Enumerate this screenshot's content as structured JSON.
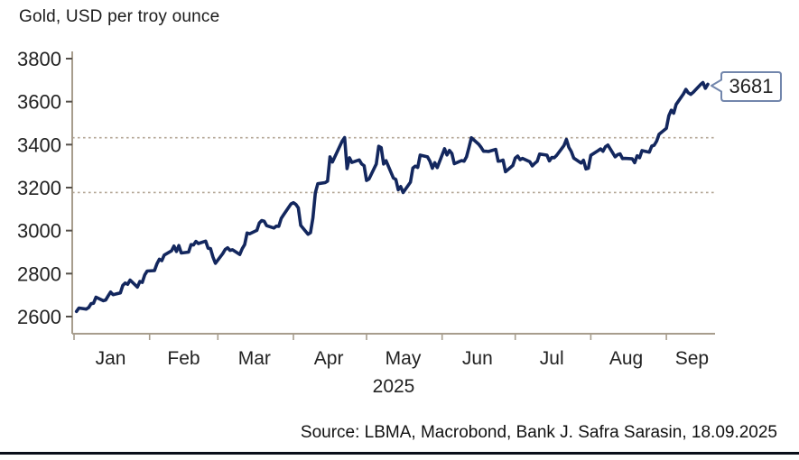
{
  "title": "Gold, USD per troy ounce",
  "source": "Source: LBMA, Macrobond, Bank J. Safra Sarasin, 18.09.2025",
  "colors": {
    "line": "#13275e",
    "axis": "#a79d8d",
    "grid_dash": "#b3a695",
    "tick": "#55504a",
    "text": "#222222",
    "callout_border": "#7286ac",
    "bottom_rule": "#0a0f1a"
  },
  "chart_data": {
    "type": "line",
    "title": "Gold, USD per troy ounce",
    "xlabel": "",
    "ylabel": "USD per troy ounce",
    "year_label": "2025",
    "x_tick_labels": [
      "Jan",
      "Feb",
      "Mar",
      "Apr",
      "May",
      "Jun",
      "Jul",
      "Aug",
      "Sep"
    ],
    "y_ticks": [
      2600,
      2800,
      3000,
      3200,
      3400,
      3600,
      3800
    ],
    "ylim": [
      2520,
      3840
    ],
    "dashed_levels": [
      3177,
      3432
    ],
    "grid": "dashed horizontal reference lines at prior high/low",
    "legend_position": "none",
    "last_value": 3681,
    "last_value_label": "3681",
    "series": [
      {
        "name": "Gold, USD per troy ounce",
        "points_format": "[day_of_year_2025, usd_per_troy_ounce]",
        "points": [
          [
            2,
            2624
          ],
          [
            3,
            2640
          ],
          [
            6,
            2635
          ],
          [
            7,
            2642
          ],
          [
            8,
            2660
          ],
          [
            9,
            2662
          ],
          [
            10,
            2690
          ],
          [
            13,
            2674
          ],
          [
            14,
            2677
          ],
          [
            15,
            2696
          ],
          [
            16,
            2714
          ],
          [
            17,
            2702
          ],
          [
            20,
            2710
          ],
          [
            21,
            2745
          ],
          [
            22,
            2756
          ],
          [
            23,
            2750
          ],
          [
            24,
            2770
          ],
          [
            27,
            2737
          ],
          [
            28,
            2763
          ],
          [
            29,
            2759
          ],
          [
            30,
            2794
          ],
          [
            31,
            2812
          ],
          [
            34,
            2814
          ],
          [
            35,
            2845
          ],
          [
            36,
            2867
          ],
          [
            37,
            2860
          ],
          [
            38,
            2886
          ],
          [
            41,
            2906
          ],
          [
            42,
            2928
          ],
          [
            43,
            2903
          ],
          [
            44,
            2930
          ],
          [
            45,
            2896
          ],
          [
            48,
            2900
          ],
          [
            49,
            2935
          ],
          [
            50,
            2933
          ],
          [
            51,
            2950
          ],
          [
            52,
            2940
          ],
          [
            55,
            2951
          ],
          [
            56,
            2918
          ],
          [
            57,
            2916
          ],
          [
            58,
            2877
          ],
          [
            59,
            2848
          ],
          [
            62,
            2893
          ],
          [
            63,
            2912
          ],
          [
            64,
            2920
          ],
          [
            65,
            2908
          ],
          [
            66,
            2911
          ],
          [
            69,
            2889
          ],
          [
            70,
            2916
          ],
          [
            71,
            2935
          ],
          [
            72,
            2989
          ],
          [
            73,
            2985
          ],
          [
            76,
            3001
          ],
          [
            77,
            3035
          ],
          [
            78,
            3047
          ],
          [
            79,
            3044
          ],
          [
            80,
            3023
          ],
          [
            83,
            3012
          ],
          [
            84,
            3021
          ],
          [
            85,
            3020
          ],
          [
            86,
            3057
          ],
          [
            87,
            3074
          ],
          [
            90,
            3124
          ],
          [
            91,
            3130
          ],
          [
            92,
            3122
          ],
          [
            93,
            3106
          ],
          [
            94,
            3024
          ],
          [
            97,
            2983
          ],
          [
            98,
            2990
          ],
          [
            99,
            3059
          ],
          [
            100,
            3176
          ],
          [
            101,
            3218
          ],
          [
            104,
            3223
          ],
          [
            105,
            3230
          ],
          [
            106,
            3343
          ],
          [
            107,
            3319
          ],
          [
            111,
            3416
          ],
          [
            112,
            3433
          ],
          [
            113,
            3288
          ],
          [
            114,
            3339
          ],
          [
            115,
            3317
          ],
          [
            118,
            3329
          ],
          [
            119,
            3310
          ],
          [
            120,
            3302
          ],
          [
            121,
            3233
          ],
          [
            122,
            3240
          ],
          [
            125,
            3310
          ],
          [
            126,
            3392
          ],
          [
            127,
            3386
          ],
          [
            128,
            3310
          ],
          [
            129,
            3325
          ],
          [
            132,
            3245
          ],
          [
            133,
            3238
          ],
          [
            134,
            3190
          ],
          [
            135,
            3205
          ],
          [
            136,
            3177
          ],
          [
            139,
            3225
          ],
          [
            140,
            3291
          ],
          [
            141,
            3300
          ],
          [
            142,
            3294
          ],
          [
            143,
            3351
          ],
          [
            146,
            3343
          ],
          [
            147,
            3323
          ],
          [
            148,
            3290
          ],
          [
            149,
            3316
          ],
          [
            150,
            3293
          ],
          [
            153,
            3381
          ],
          [
            154,
            3352
          ],
          [
            155,
            3373
          ],
          [
            156,
            3359
          ],
          [
            157,
            3311
          ],
          [
            160,
            3326
          ],
          [
            161,
            3323
          ],
          [
            162,
            3343
          ],
          [
            163,
            3386
          ],
          [
            164,
            3432
          ],
          [
            167,
            3402
          ],
          [
            168,
            3387
          ],
          [
            169,
            3369
          ],
          [
            170,
            3369
          ],
          [
            171,
            3368
          ],
          [
            174,
            3378
          ],
          [
            175,
            3323
          ],
          [
            176,
            3324
          ],
          [
            177,
            3328
          ],
          [
            178,
            3274
          ],
          [
            181,
            3303
          ],
          [
            182,
            3337
          ],
          [
            183,
            3347
          ],
          [
            184,
            3330
          ],
          [
            185,
            3336
          ],
          [
            188,
            3320
          ],
          [
            189,
            3301
          ],
          [
            190,
            3313
          ],
          [
            191,
            3322
          ],
          [
            192,
            3356
          ],
          [
            195,
            3351
          ],
          [
            196,
            3324
          ],
          [
            197,
            3340
          ],
          [
            198,
            3339
          ],
          [
            199,
            3350
          ],
          [
            202,
            3396
          ],
          [
            203,
            3424
          ],
          [
            204,
            3387
          ],
          [
            205,
            3368
          ],
          [
            206,
            3337
          ],
          [
            209,
            3314
          ],
          [
            210,
            3327
          ],
          [
            211,
            3287
          ],
          [
            212,
            3290
          ],
          [
            213,
            3350
          ],
          [
            216,
            3372
          ],
          [
            217,
            3380
          ],
          [
            218,
            3369
          ],
          [
            219,
            3390
          ],
          [
            220,
            3398
          ],
          [
            223,
            3343
          ],
          [
            224,
            3353
          ],
          [
            225,
            3357
          ],
          [
            226,
            3335
          ],
          [
            227,
            3336
          ],
          [
            230,
            3334
          ],
          [
            231,
            3316
          ],
          [
            232,
            3348
          ],
          [
            233,
            3339
          ],
          [
            234,
            3372
          ],
          [
            237,
            3365
          ],
          [
            238,
            3393
          ],
          [
            239,
            3397
          ],
          [
            240,
            3416
          ],
          [
            241,
            3448
          ],
          [
            244,
            3476
          ],
          [
            245,
            3534
          ],
          [
            246,
            3560
          ],
          [
            247,
            3546
          ],
          [
            248,
            3587
          ],
          [
            251,
            3636
          ],
          [
            252,
            3657
          ],
          [
            253,
            3641
          ],
          [
            254,
            3634
          ],
          [
            255,
            3643
          ],
          [
            258,
            3679
          ],
          [
            259,
            3689
          ],
          [
            260,
            3662
          ],
          [
            261,
            3681
          ]
        ]
      }
    ]
  }
}
